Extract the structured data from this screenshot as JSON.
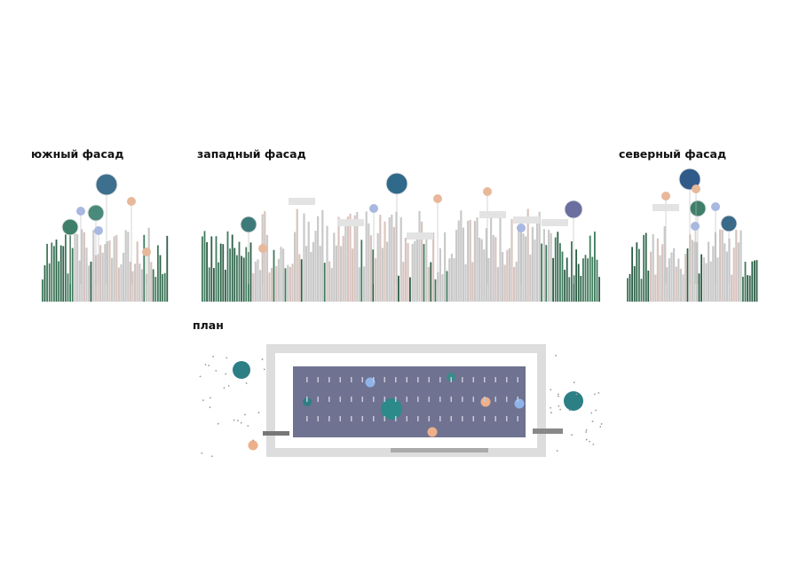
{
  "labels": {
    "south": "южный фасад",
    "west": "западный фасад",
    "north": "северный фасад",
    "plan": "план"
  }
}
